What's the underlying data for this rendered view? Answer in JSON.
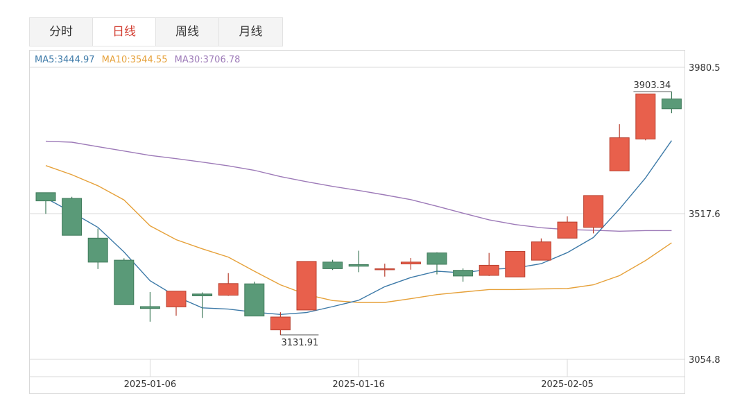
{
  "tabs": [
    {
      "label": "分时",
      "active": false
    },
    {
      "label": "日线",
      "active": true
    },
    {
      "label": "周线",
      "active": false
    },
    {
      "label": "月线",
      "active": false
    }
  ],
  "legend": {
    "ma5": "MA5:3444.97",
    "ma10": "MA10:3544.55",
    "ma30": "MA30:3706.78"
  },
  "colors": {
    "up": "#e8604c",
    "down": "#5a9a78",
    "ma5": "#3d7aa8",
    "ma10": "#e6a13a",
    "ma30": "#9d7ab8"
  },
  "chart_data": {
    "type": "candlestick",
    "y_ticks": [
      "3980.5",
      "3517.6",
      "3054.8"
    ],
    "ylim": [
      3054.8,
      3980.5
    ],
    "x_tick_labels": [
      {
        "index": 4,
        "label": "2025-01-06"
      },
      {
        "index": 12,
        "label": "2025-01-16"
      },
      {
        "index": 20,
        "label": "2025-02-05"
      }
    ],
    "max_label": "3903.34",
    "min_label": "3131.91",
    "candles": [
      {
        "open": 3583,
        "close": 3557,
        "high": 3583,
        "low": 3516
      },
      {
        "open": 3565,
        "close": 3448,
        "high": 3570,
        "low": 3448
      },
      {
        "open": 3439,
        "close": 3363,
        "high": 3469,
        "low": 3341
      },
      {
        "open": 3369,
        "close": 3228,
        "high": 3375,
        "low": 3228
      },
      {
        "open": 3222,
        "close": 3216,
        "high": 3268,
        "low": 3174
      },
      {
        "open": 3221,
        "close": 3271,
        "high": 3271,
        "low": 3193
      },
      {
        "open": 3262,
        "close": 3256,
        "high": 3267,
        "low": 3186
      },
      {
        "open": 3258,
        "close": 3295,
        "high": 3328,
        "low": 3256
      },
      {
        "open": 3294,
        "close": 3192,
        "high": 3301,
        "low": 3192
      },
      {
        "open": 3148,
        "close": 3189,
        "high": 3204,
        "low": 3131.91
      },
      {
        "open": 3211,
        "close": 3365,
        "high": 3365,
        "low": 3211
      },
      {
        "open": 3363,
        "close": 3342,
        "high": 3370,
        "low": 3338
      },
      {
        "open": 3355,
        "close": 3350,
        "high": 3399,
        "low": 3331
      },
      {
        "open": 3339,
        "close": 3342,
        "high": 3358,
        "low": 3317
      },
      {
        "open": 3357,
        "close": 3363,
        "high": 3376,
        "low": 3339
      },
      {
        "open": 3392,
        "close": 3356,
        "high": 3394,
        "low": 3324
      },
      {
        "open": 3337,
        "close": 3319,
        "high": 3343,
        "low": 3301
      },
      {
        "open": 3321,
        "close": 3353,
        "high": 3392,
        "low": 3319
      },
      {
        "open": 3316,
        "close": 3397,
        "high": 3397,
        "low": 3316
      },
      {
        "open": 3369,
        "close": 3427,
        "high": 3438,
        "low": 3369
      },
      {
        "open": 3439,
        "close": 3490,
        "high": 3508,
        "low": 3439
      },
      {
        "open": 3473,
        "close": 3574,
        "high": 3574,
        "low": 3454
      },
      {
        "open": 3652,
        "close": 3757,
        "high": 3800,
        "low": 3652
      },
      {
        "open": 3753,
        "close": 3896,
        "high": 3896,
        "low": 3749
      },
      {
        "open": 3880,
        "close": 3849,
        "high": 3903.34,
        "low": 3835
      }
    ],
    "series": [
      {
        "name": "MA5",
        "values": [
          3566,
          3521,
          3473,
          3395,
          3304,
          3254,
          3218,
          3214,
          3204,
          3197,
          3203,
          3222,
          3242,
          3285,
          3314,
          3334,
          3329,
          3340,
          3344,
          3358,
          3393,
          3441,
          3531,
          3630,
          3748
        ]
      },
      {
        "name": "MA10",
        "values": [
          3669,
          3640,
          3605,
          3560,
          3478,
          3434,
          3405,
          3379,
          3334,
          3291,
          3260,
          3241,
          3235,
          3235,
          3247,
          3260,
          3268,
          3276,
          3276,
          3278,
          3279,
          3291,
          3320,
          3368,
          3424
        ]
      },
      {
        "name": "MA30",
        "values": [
          3746,
          3743,
          3729,
          3715,
          3701,
          3691,
          3680,
          3668,
          3654,
          3634,
          3618,
          3603,
          3590,
          3576,
          3561,
          3540,
          3518,
          3497,
          3482,
          3472,
          3466,
          3464,
          3461,
          3463,
          3463
        ]
      }
    ]
  }
}
